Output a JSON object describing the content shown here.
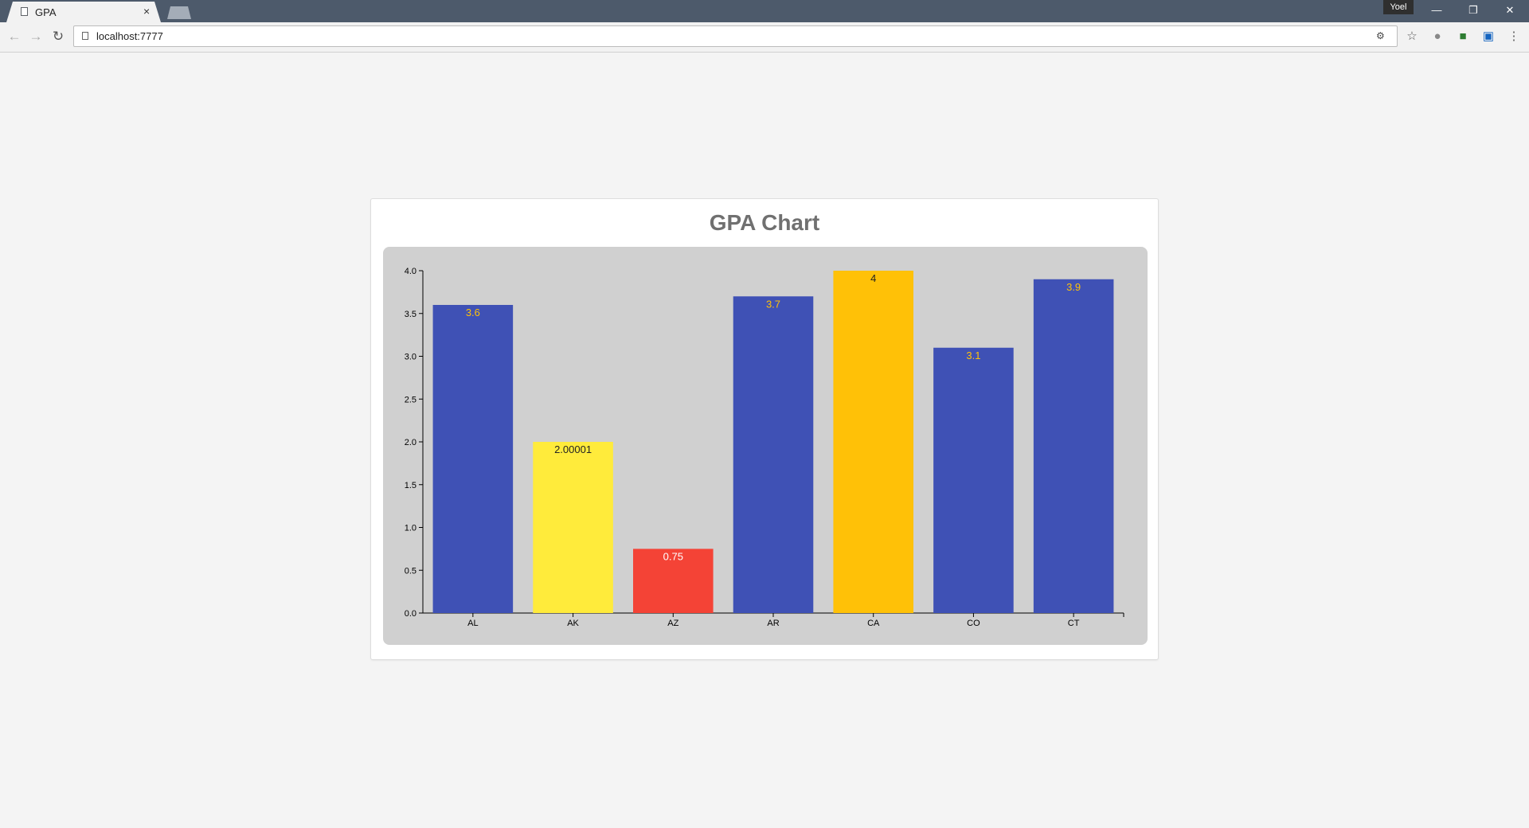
{
  "browser": {
    "tab_title": "GPA",
    "tab_close": "×",
    "url": "localhost:7777",
    "profile_name": "Yoel",
    "icons": [
      "page-icon",
      "back-icon",
      "forward-icon",
      "reload-icon",
      "star-icon",
      "globe-icon",
      "extension-icon",
      "bookmark-icon",
      "menu-icon",
      "minimize-icon",
      "restore-icon",
      "close-icon"
    ]
  },
  "page": {
    "title": "GPA Chart"
  },
  "chart_data": {
    "type": "bar",
    "title": "GPA Chart",
    "xlabel": "",
    "ylabel": "",
    "categories": [
      "AL",
      "AK",
      "AZ",
      "AR",
      "CA",
      "CO",
      "CT"
    ],
    "values": [
      3.6,
      2.00001,
      0.75,
      3.7,
      4,
      3.1,
      3.9
    ],
    "value_labels": [
      "3.6",
      "2.00001",
      "0.75",
      "3.7",
      "4",
      "3.1",
      "3.9"
    ],
    "bar_colors": [
      "#3f51b5",
      "#ffeb3b",
      "#f44336",
      "#3f51b5",
      "#ffc107",
      "#3f51b5",
      "#3f51b5"
    ],
    "label_colors": [
      "#ffc107",
      "#222222",
      "#ffffff",
      "#ffc107",
      "#222222",
      "#ffc107",
      "#ffc107"
    ],
    "y_ticks": [
      "0.0",
      "0.5",
      "1.0",
      "1.5",
      "2.0",
      "2.5",
      "3.0",
      "3.5",
      "4.0"
    ],
    "ylim": [
      0,
      4
    ],
    "grid": false,
    "legend": "none",
    "background": "#d0d0d0"
  }
}
